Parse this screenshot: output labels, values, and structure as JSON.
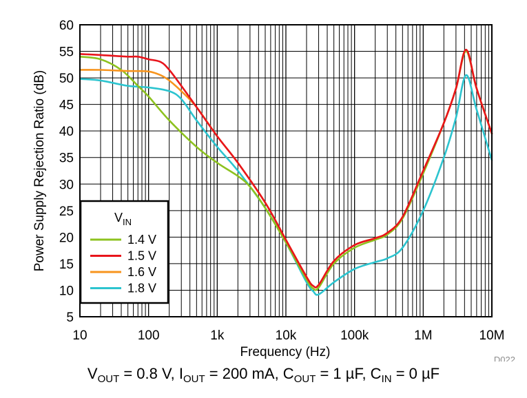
{
  "chart_data": {
    "type": "line",
    "x_scale": "log",
    "xlabel": "Frequency (Hz)",
    "ylabel": "Power Supply Rejection Ratio (dB)",
    "xlim": [
      10,
      10000000
    ],
    "ylim": [
      5,
      60
    ],
    "x_ticks": [
      10,
      100,
      1000,
      10000,
      100000,
      1000000,
      10000000
    ],
    "x_tick_labels": [
      "10",
      "100",
      "1k",
      "10k",
      "100k",
      "1M",
      "10M"
    ],
    "y_ticks": [
      5,
      10,
      15,
      20,
      25,
      30,
      35,
      40,
      45,
      50,
      55,
      60
    ],
    "y_tick_labels": [
      "5",
      "10",
      "15",
      "20",
      "25",
      "30",
      "35",
      "40",
      "45",
      "50",
      "55",
      "60"
    ],
    "grid": true,
    "legend": {
      "title_main": "V",
      "title_sub": "IN",
      "position": "bottom-left"
    },
    "series": [
      {
        "name": "1.4 V",
        "color": "#8dc21f",
        "x": [
          10,
          20,
          40,
          70,
          100,
          200,
          500,
          1000,
          2000,
          3000,
          5000,
          10000,
          20000,
          25000,
          30000,
          50000,
          100000,
          200000,
          300000,
          500000,
          1000000,
          2000000,
          3000000,
          4200000,
          6000000,
          10000000
        ],
        "y": [
          54.0,
          53.5,
          51.5,
          48.5,
          46.5,
          42.0,
          37.0,
          34.0,
          31.5,
          29.5,
          25.5,
          19.0,
          12.0,
          10.3,
          10.5,
          15.0,
          18.0,
          19.5,
          20.5,
          23.5,
          32.0,
          41.5,
          48.0,
          55.0,
          48.0,
          39.5
        ]
      },
      {
        "name": "1.5 V",
        "color": "#e8141b",
        "x": [
          10,
          20,
          50,
          70,
          100,
          150,
          200,
          300,
          500,
          1000,
          2000,
          5000,
          10000,
          20000,
          25000,
          30000,
          50000,
          100000,
          200000,
          300000,
          500000,
          1000000,
          2000000,
          3000000,
          4200000,
          6000000,
          10000000
        ],
        "y": [
          54.5,
          54.3,
          54.0,
          54.0,
          53.5,
          53.0,
          51.5,
          48.5,
          44.5,
          39.0,
          34.0,
          26.5,
          19.5,
          12.5,
          10.8,
          11.0,
          15.5,
          18.5,
          19.8,
          20.8,
          23.8,
          32.5,
          41.5,
          48.0,
          55.3,
          48.0,
          39.5
        ]
      },
      {
        "name": "1.6 V",
        "color": "#f7941d",
        "x": [
          10,
          20,
          50,
          100,
          150,
          200,
          300,
          500,
          1000,
          2000,
          5000,
          10000,
          20000,
          25000,
          30000,
          50000,
          100000,
          200000,
          300000,
          500000,
          1000000,
          2000000,
          3000000,
          4200000,
          6000000,
          10000000
        ],
        "y": [
          51.5,
          51.5,
          51.3,
          51.2,
          50.5,
          49.5,
          47.5,
          44.5,
          39.0,
          34.0,
          26.5,
          19.5,
          12.5,
          10.8,
          11.0,
          15.5,
          18.5,
          19.8,
          20.8,
          23.8,
          32.5,
          41.5,
          48.0,
          55.3,
          48.0,
          39.5
        ]
      },
      {
        "name": "1.8 V",
        "color": "#2cc4cf",
        "x": [
          10,
          20,
          50,
          100,
          200,
          300,
          500,
          1000,
          2000,
          5000,
          10000,
          20000,
          25000,
          30000,
          50000,
          100000,
          200000,
          300000,
          500000,
          1000000,
          2000000,
          3000000,
          4200000,
          6000000,
          10000000
        ],
        "y": [
          49.8,
          49.5,
          48.5,
          48.2,
          47.5,
          46.0,
          42.0,
          37.0,
          32.5,
          25.5,
          19.0,
          11.5,
          9.8,
          9.2,
          11.5,
          14.0,
          15.3,
          16.0,
          18.0,
          25.0,
          35.0,
          42.5,
          50.5,
          44.0,
          34.5
        ]
      }
    ],
    "figure_id": "D022"
  },
  "caption": {
    "parts": [
      {
        "t": "V"
      },
      {
        "t": "OUT",
        "sub": true
      },
      {
        "t": " = 0.8 V, I"
      },
      {
        "t": "OUT",
        "sub": true
      },
      {
        "t": " = 200 mA, C"
      },
      {
        "t": "OUT",
        "sub": true
      },
      {
        "t": " = 1 µF, C"
      },
      {
        "t": "IN",
        "sub": true
      },
      {
        "t": " = 0 µF"
      }
    ]
  }
}
